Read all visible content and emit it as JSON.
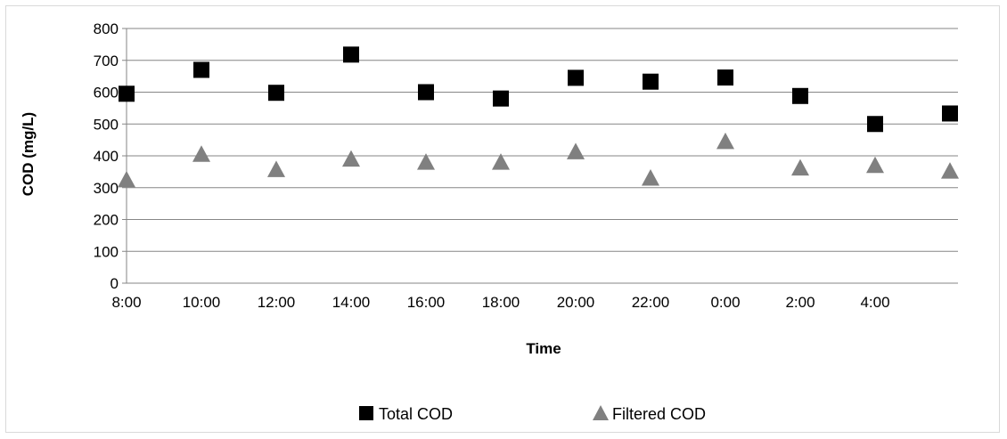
{
  "chart_data": {
    "type": "scatter",
    "title": "",
    "xlabel": "Time",
    "ylabel": "COD (mg/L)",
    "ylim": [
      0,
      800
    ],
    "yticks": [
      0,
      100,
      200,
      300,
      400,
      500,
      600,
      700,
      800
    ],
    "x_tick_labels": [
      "8:00",
      "10:00",
      "12:00",
      "14:00",
      "16:00",
      "18:00",
      "20:00",
      "22:00",
      "0:00",
      "2:00",
      "4:00"
    ],
    "grid": true,
    "legend_position": "bottom",
    "series": [
      {
        "name": "Total COD",
        "marker": "square",
        "color": "#000000",
        "values": [
          595,
          670,
          598,
          718,
          600,
          580,
          645,
          633,
          646,
          588,
          500,
          533
        ]
      },
      {
        "name": "Filtered COD",
        "marker": "triangle",
        "color": "#808080",
        "values": [
          325,
          405,
          357,
          390,
          380,
          380,
          413,
          330,
          445,
          362,
          370,
          352
        ]
      }
    ]
  }
}
